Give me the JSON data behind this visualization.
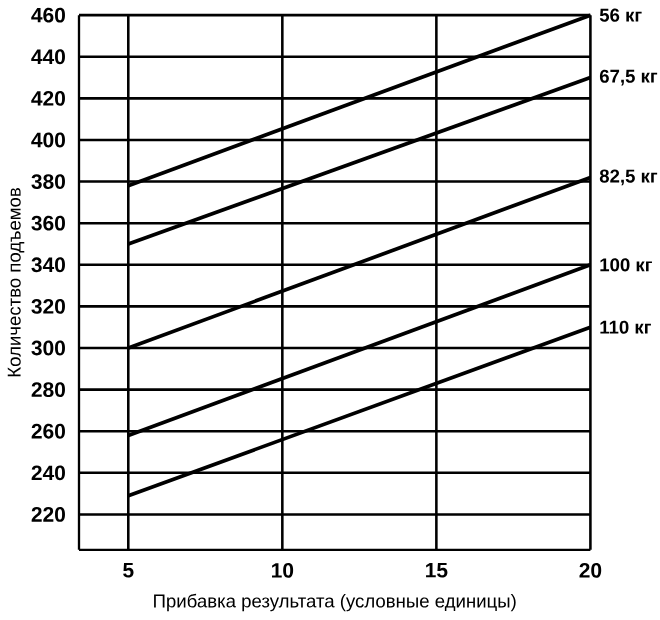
{
  "chart_data": {
    "type": "line",
    "xlabel": "Прибавка результата (условные единицы)",
    "ylabel": "Количество подъемов",
    "x": [
      5,
      20
    ],
    "xlim": [
      3.4,
      20
    ],
    "ylim": [
      203,
      460
    ],
    "xticks": [
      5,
      10,
      15,
      20
    ],
    "yticks": [
      220,
      240,
      260,
      280,
      300,
      320,
      340,
      360,
      380,
      400,
      420,
      440,
      460
    ],
    "grid": true,
    "legend": false,
    "marker": "none",
    "line_style": "solid",
    "series": [
      {
        "name": "56 кг",
        "color": "#000000",
        "values": [
          378,
          460
        ]
      },
      {
        "name": "67,5 кг",
        "color": "#000000",
        "values": [
          350,
          430
        ]
      },
      {
        "name": "82,5 кг",
        "color": "#000000",
        "values": [
          300,
          382
        ]
      },
      {
        "name": "100 кг",
        "color": "#000000",
        "values": [
          258,
          340
        ]
      },
      {
        "name": "110 кг",
        "color": "#000000",
        "values": [
          229,
          310
        ]
      }
    ]
  }
}
